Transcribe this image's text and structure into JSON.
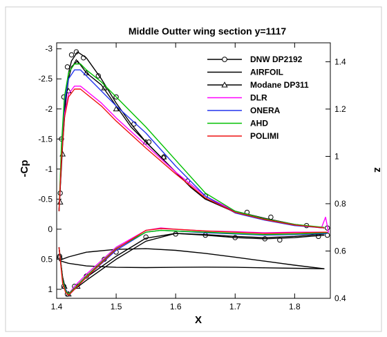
{
  "chart_data": {
    "type": "line",
    "title": "Middle Outter wing section y=1117",
    "xlabel": "X",
    "ylabel": "-Cp",
    "y2label": "z",
    "xlim": [
      1.4,
      1.86
    ],
    "xticks": [
      1.4,
      1.5,
      1.6,
      1.7,
      1.8
    ],
    "xtick_labels": [
      "1.4",
      "1.5",
      "1.6",
      "1.7",
      "1.8"
    ],
    "ylim": [
      1.15,
      -3.1
    ],
    "y_inverted": true,
    "yticks": [
      -3,
      -2.5,
      -2,
      -1.5,
      -1,
      -0.5,
      0,
      0.5,
      1
    ],
    "ytick_labels": [
      "-3",
      "-2.5",
      "-2",
      "-1.5",
      "-1",
      "-0.5",
      "0",
      "0.5",
      "1"
    ],
    "y2lim": [
      0.4,
      1.48
    ],
    "y2ticks": [
      0.4,
      0.6,
      0.8,
      1,
      1.2,
      1.4
    ],
    "y2tick_labels": [
      "0.4",
      "0.6",
      "0.8",
      "1",
      "1.2",
      "1.4"
    ],
    "grid": false,
    "legend_position": "top-right",
    "series": [
      {
        "name": "DNW DP2192",
        "color": "#000000",
        "marker": "circle",
        "axis": "left",
        "upper": {
          "x": [
            1.404,
            1.41,
            1.415,
            1.42,
            1.425,
            1.435,
            1.45,
            1.475,
            1.5,
            1.525,
            1.55,
            1.575,
            1.6,
            1.625,
            1.65,
            1.7,
            1.75,
            1.8,
            1.85
          ],
          "y": [
            -0.3,
            -1.5,
            -2.2,
            -2.6,
            -2.8,
            -2.95,
            -2.85,
            -2.5,
            -2.1,
            -1.75,
            -1.45,
            -1.2,
            -0.95,
            -0.7,
            -0.5,
            -0.3,
            -0.18,
            -0.08,
            -0.02
          ]
        },
        "lower": {
          "x": [
            1.404,
            1.41,
            1.415,
            1.42,
            1.43,
            1.45,
            1.5,
            1.55,
            1.6,
            1.65,
            1.7,
            1.75,
            1.8,
            1.85
          ],
          "y": [
            0.3,
            0.8,
            1.0,
            1.1,
            1.0,
            0.8,
            0.45,
            0.15,
            0.07,
            0.1,
            0.14,
            0.16,
            0.14,
            0.1
          ]
        },
        "markers_x": [
          1.406,
          1.408,
          1.412,
          1.418,
          1.425,
          1.433,
          1.445,
          1.47,
          1.5,
          1.53,
          1.555,
          1.58,
          1.62,
          1.65,
          1.72,
          1.76,
          1.82,
          1.855,
          1.405,
          1.412,
          1.418,
          1.43,
          1.45,
          1.48,
          1.5,
          1.55,
          1.6,
          1.65,
          1.7,
          1.75,
          1.775,
          1.84,
          1.855
        ],
        "markers_y": [
          -0.6,
          -1.5,
          -2.2,
          -2.7,
          -2.9,
          -2.95,
          -2.85,
          -2.55,
          -2.2,
          -1.75,
          -1.45,
          -1.2,
          -0.8,
          -0.55,
          -0.28,
          -0.2,
          -0.06,
          -0.02,
          0.45,
          0.95,
          1.08,
          0.95,
          0.78,
          0.5,
          0.38,
          0.13,
          0.08,
          0.1,
          0.14,
          0.16,
          0.18,
          0.12,
          0.1
        ]
      },
      {
        "name": "AIRFOIL",
        "color": "#000000",
        "marker": "none",
        "axis": "right",
        "upper": {
          "x": [
            1.404,
            1.42,
            1.45,
            1.5,
            1.55,
            1.6,
            1.65,
            1.7,
            1.75,
            1.8,
            1.85
          ],
          "y": [
            0.56,
            0.575,
            0.595,
            0.607,
            0.61,
            0.603,
            0.59,
            0.574,
            0.557,
            0.54,
            0.525
          ]
        },
        "lower": {
          "x": [
            1.404,
            1.42,
            1.45,
            1.5,
            1.55,
            1.6,
            1.65,
            1.7,
            1.75,
            1.8,
            1.85
          ],
          "y": [
            0.56,
            0.548,
            0.537,
            0.531,
            0.53,
            0.531,
            0.532,
            0.531,
            0.529,
            0.527,
            0.525
          ]
        }
      },
      {
        "name": "Modane DP311",
        "color": "#000000",
        "marker": "triangle",
        "axis": "left",
        "upper": {
          "x": [
            1.404,
            1.41,
            1.415,
            1.42,
            1.425,
            1.435,
            1.45,
            1.475,
            1.5,
            1.525,
            1.55,
            1.575,
            1.6,
            1.625,
            1.65,
            1.7,
            1.75,
            1.8,
            1.85
          ],
          "y": [
            -0.3,
            -1.4,
            -2.1,
            -2.5,
            -2.7,
            -2.8,
            -2.6,
            -2.4,
            -2.05,
            -1.7,
            -1.45,
            -1.2,
            -0.95,
            -0.7,
            -0.5,
            -0.28,
            -0.16,
            -0.07,
            -0.02
          ]
        },
        "lower": {
          "x": [
            1.404,
            1.41,
            1.415,
            1.42,
            1.43,
            1.45,
            1.5,
            1.55,
            1.6,
            1.65,
            1.7,
            1.75,
            1.8,
            1.85
          ],
          "y": [
            0.3,
            0.8,
            1.0,
            1.08,
            1.0,
            0.85,
            0.5,
            0.2,
            0.07,
            0.09,
            0.12,
            0.14,
            0.12,
            0.08
          ]
        },
        "markers_x": [
          1.406,
          1.41,
          1.42,
          1.433,
          1.45,
          1.48,
          1.5,
          1.55,
          1.58,
          1.405,
          1.413,
          1.42,
          1.435
        ],
        "markers_y": [
          -0.45,
          -1.25,
          -2.3,
          -2.78,
          -2.6,
          -2.35,
          -2.0,
          -1.45,
          -1.2,
          0.45,
          0.95,
          1.08,
          0.95
        ]
      },
      {
        "name": "DLR",
        "color": "#ff00ff",
        "marker": "none",
        "axis": "left",
        "upper": {
          "x": [
            1.404,
            1.408,
            1.413,
            1.42,
            1.43,
            1.44,
            1.45,
            1.475,
            1.5,
            1.55,
            1.6,
            1.65,
            1.7,
            1.75,
            1.8,
            1.845,
            1.852,
            1.857
          ],
          "y": [
            -0.3,
            -1.2,
            -1.9,
            -2.25,
            -2.38,
            -2.38,
            -2.3,
            -2.1,
            -1.85,
            -1.4,
            -0.95,
            -0.55,
            -0.3,
            -0.17,
            -0.08,
            -0.02,
            -0.2,
            0.05
          ]
        },
        "lower": {
          "x": [
            1.404,
            1.41,
            1.415,
            1.42,
            1.43,
            1.45,
            1.5,
            1.55,
            1.575,
            1.6,
            1.65,
            1.7,
            1.75,
            1.8,
            1.857
          ],
          "y": [
            0.3,
            0.85,
            1.0,
            1.08,
            0.95,
            0.75,
            0.3,
            0.02,
            -0.02,
            0.0,
            0.03,
            0.04,
            0.06,
            0.05,
            0.05
          ]
        }
      },
      {
        "name": "ONERA",
        "color": "#2233ee",
        "marker": "none",
        "axis": "left",
        "upper": {
          "x": [
            1.404,
            1.408,
            1.413,
            1.42,
            1.43,
            1.44,
            1.45,
            1.475,
            1.5,
            1.55,
            1.6,
            1.65,
            1.7,
            1.75,
            1.8,
            1.85
          ],
          "y": [
            -0.3,
            -1.3,
            -2.1,
            -2.5,
            -2.65,
            -2.65,
            -2.55,
            -2.3,
            -2.05,
            -1.6,
            -1.05,
            -0.55,
            -0.27,
            -0.15,
            -0.06,
            -0.02
          ]
        },
        "lower": {
          "x": [
            1.404,
            1.41,
            1.415,
            1.42,
            1.43,
            1.45,
            1.5,
            1.55,
            1.575,
            1.6,
            1.65,
            1.7,
            1.75,
            1.8,
            1.855
          ],
          "y": [
            0.3,
            0.85,
            1.0,
            1.1,
            1.0,
            0.8,
            0.35,
            0.05,
            0.02,
            0.03,
            0.06,
            0.08,
            0.1,
            0.09,
            0.07
          ]
        }
      },
      {
        "name": "AHD",
        "color": "#00c000",
        "marker": "none",
        "axis": "left",
        "upper": {
          "x": [
            1.404,
            1.408,
            1.413,
            1.42,
            1.43,
            1.44,
            1.45,
            1.475,
            1.5,
            1.55,
            1.6,
            1.65,
            1.7,
            1.75,
            1.8,
            1.85
          ],
          "y": [
            -0.3,
            -1.4,
            -2.2,
            -2.6,
            -2.75,
            -2.75,
            -2.65,
            -2.45,
            -2.2,
            -1.7,
            -1.15,
            -0.6,
            -0.3,
            -0.17,
            -0.08,
            -0.03
          ]
        },
        "lower": {
          "x": [
            1.404,
            1.41,
            1.415,
            1.42,
            1.43,
            1.45,
            1.5,
            1.55,
            1.575,
            1.6,
            1.65,
            1.7,
            1.75,
            1.8,
            1.855
          ],
          "y": [
            0.3,
            0.85,
            1.02,
            1.08,
            0.98,
            0.78,
            0.32,
            0.05,
            0.02,
            0.03,
            0.05,
            0.07,
            0.09,
            0.08,
            0.06
          ]
        }
      },
      {
        "name": "POLIMI",
        "color": "#ee1111",
        "marker": "none",
        "axis": "left",
        "upper": {
          "x": [
            1.404,
            1.408,
            1.413,
            1.42,
            1.43,
            1.44,
            1.45,
            1.475,
            1.5,
            1.55,
            1.6,
            1.65,
            1.7,
            1.75,
            1.8,
            1.85
          ],
          "y": [
            -0.3,
            -1.15,
            -1.85,
            -2.2,
            -2.33,
            -2.33,
            -2.25,
            -2.05,
            -1.8,
            -1.35,
            -0.92,
            -0.52,
            -0.28,
            -0.16,
            -0.07,
            -0.02
          ]
        },
        "lower": {
          "x": [
            1.404,
            1.41,
            1.415,
            1.42,
            1.43,
            1.45,
            1.5,
            1.55,
            1.575,
            1.6,
            1.65,
            1.7,
            1.75,
            1.8,
            1.855
          ],
          "y": [
            0.3,
            0.9,
            1.05,
            1.1,
            1.0,
            0.8,
            0.33,
            0.02,
            -0.01,
            0.0,
            0.03,
            0.05,
            0.07,
            0.06,
            0.05
          ]
        }
      }
    ]
  }
}
